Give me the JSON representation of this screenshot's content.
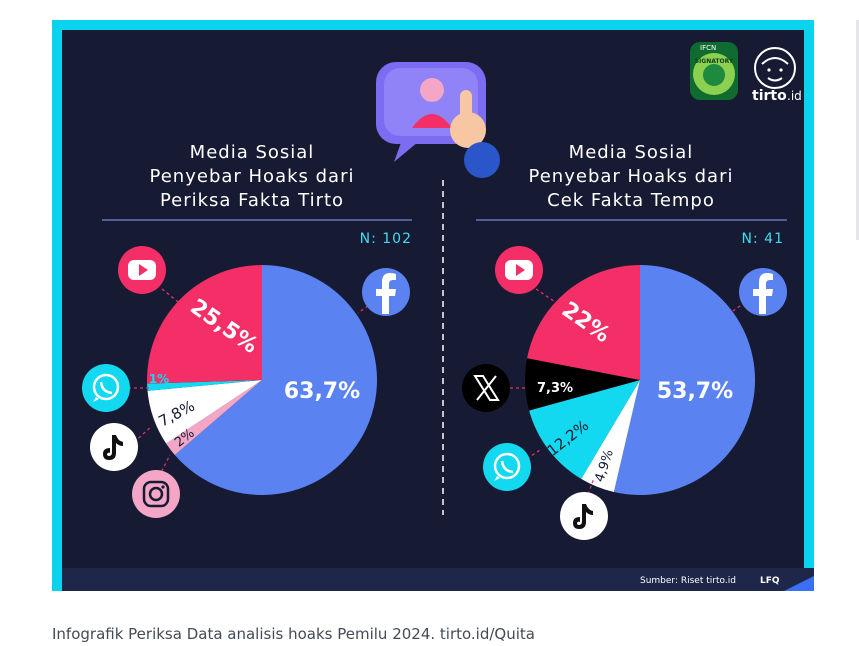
{
  "caption": "Infografik Periksa Data analisis hoaks Pemilu 2024. tirto.id/Quita",
  "footer": {
    "source": "Sumber: Riset tirto.id",
    "credit": "LFQ"
  },
  "brand": {
    "logo_text": "tirto",
    "logo_suffix": ".id",
    "badge_top": "IFCN",
    "badge_mid": "SIGNATORY"
  },
  "colors": {
    "facebook": "#5a82f0",
    "youtube": "#f42e67",
    "whatsapp": "#12d8f0",
    "tiktok": "#ffffff",
    "instagram": "#f4a6c6",
    "x": "#000000",
    "frame": "#0ad3ee",
    "background": "#161b33"
  },
  "chart_data": [
    {
      "type": "pie",
      "title_lines": [
        "Media Sosial",
        "Penyebar Hoaks dari",
        "Periksa Fakta Tirto"
      ],
      "n_label": "N: 102",
      "slices": [
        {
          "name": "Facebook",
          "value": 63.7,
          "label": "63,7%",
          "color": "#5a82f0",
          "icon": "facebook-icon"
        },
        {
          "name": "Instagram",
          "value": 2,
          "label": "2%",
          "color": "#f4a6c6",
          "icon": "instagram-icon"
        },
        {
          "name": "TikTok",
          "value": 7.8,
          "label": "7,8%",
          "color": "#ffffff",
          "icon": "tiktok-icon"
        },
        {
          "name": "WhatsApp",
          "value": 1,
          "label": "1%",
          "color": "#12d8f0",
          "icon": "whatsapp-icon"
        },
        {
          "name": "YouTube",
          "value": 25.5,
          "label": "25,5%",
          "color": "#f42e67",
          "icon": "youtube-icon"
        }
      ]
    },
    {
      "type": "pie",
      "title_lines": [
        "Media Sosial",
        "Penyebar Hoaks dari",
        "Cek Fakta Tempo"
      ],
      "n_label": "N: 41",
      "slices": [
        {
          "name": "Facebook",
          "value": 53.7,
          "label": "53,7%",
          "color": "#5a82f0",
          "icon": "facebook-icon"
        },
        {
          "name": "TikTok",
          "value": 4.9,
          "label": "4,9%",
          "color": "#ffffff",
          "icon": "tiktok-icon"
        },
        {
          "name": "WhatsApp",
          "value": 12.2,
          "label": "12,2%",
          "color": "#12d8f0",
          "icon": "whatsapp-icon"
        },
        {
          "name": "X",
          "value": 7.3,
          "label": "7,3%",
          "color": "#000000",
          "icon": "x-icon"
        },
        {
          "name": "YouTube",
          "value": 22,
          "label": "22%",
          "color": "#f42e67",
          "icon": "youtube-icon"
        }
      ]
    }
  ]
}
